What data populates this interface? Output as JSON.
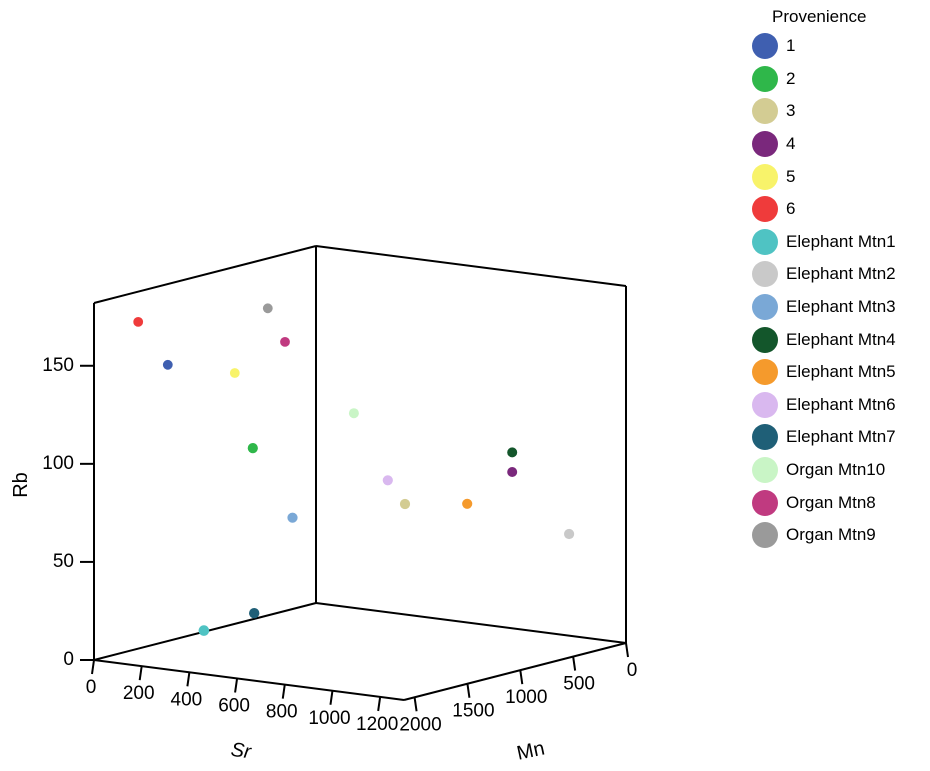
{
  "chart_data": {
    "type": "scatter3d",
    "axes": {
      "x": {
        "label": "Sr",
        "ticks": [
          "0",
          "200",
          "400",
          "600",
          "800",
          "1000",
          "1200"
        ]
      },
      "y": {
        "label": "Mn",
        "ticks": [
          "0",
          "500",
          "1000",
          "1500",
          "2000"
        ]
      },
      "z": {
        "label": "Rb",
        "ticks": [
          "0",
          "50",
          "100",
          "150"
        ]
      }
    },
    "legend": {
      "title": "Provenience",
      "items": [
        {
          "label": "1",
          "color": "#3f5fb0"
        },
        {
          "label": "2",
          "color": "#2fb74a"
        },
        {
          "label": "3",
          "color": "#d3cc93"
        },
        {
          "label": "4",
          "color": "#7a287c"
        },
        {
          "label": "5",
          "color": "#f8f36a"
        },
        {
          "label": "6",
          "color": "#ef3b3b"
        },
        {
          "label": "Elephant Mtn1",
          "color": "#4fc3c3"
        },
        {
          "label": "Elephant Mtn2",
          "color": "#c9c9c9"
        },
        {
          "label": "Elephant Mtn3",
          "color": "#7aa8d6"
        },
        {
          "label": "Elephant Mtn4",
          "color": "#13562b"
        },
        {
          "label": "Elephant Mtn5",
          "color": "#f59a2c"
        },
        {
          "label": "Elephant Mtn6",
          "color": "#d9b8ef"
        },
        {
          "label": "Elephant Mtn7",
          "color": "#1f5f77"
        },
        {
          "label": "Organ Mtn10",
          "color": "#c9f5c6"
        },
        {
          "label": "Organ Mtn8",
          "color": "#c03a80"
        },
        {
          "label": "Organ Mtn9",
          "color": "#9a9a9a"
        }
      ]
    },
    "points": [
      {
        "group": "6",
        "Sr": 30,
        "Mn": 1750,
        "Rb": 168
      },
      {
        "group": "1",
        "Sr": 110,
        "Mn": 1650,
        "Rb": 146
      },
      {
        "group": "Organ Mtn9",
        "Sr": 330,
        "Mn": 1200,
        "Rb": 172
      },
      {
        "group": "Organ Mtn8",
        "Sr": 380,
        "Mn": 1150,
        "Rb": 155
      },
      {
        "group": "5",
        "Sr": 280,
        "Mn": 1400,
        "Rb": 141
      },
      {
        "group": "Organ Mtn10",
        "Sr": 580,
        "Mn": 950,
        "Rb": 119
      },
      {
        "group": "2",
        "Sr": 400,
        "Mn": 1500,
        "Rb": 106
      },
      {
        "group": "Elephant Mtn4",
        "Sr": 1000,
        "Mn": 400,
        "Rb": 98
      },
      {
        "group": "4",
        "Sr": 1000,
        "Mn": 400,
        "Rb": 88
      },
      {
        "group": "Elephant Mtn6",
        "Sr": 700,
        "Mn": 900,
        "Rb": 86
      },
      {
        "group": "3",
        "Sr": 750,
        "Mn": 850,
        "Rb": 74
      },
      {
        "group": "Elephant Mtn5",
        "Sr": 900,
        "Mn": 600,
        "Rb": 73
      },
      {
        "group": "Elephant Mtn2",
        "Sr": 1150,
        "Mn": 200,
        "Rb": 56
      },
      {
        "group": "Elephant Mtn3",
        "Sr": 500,
        "Mn": 1350,
        "Rb": 70
      },
      {
        "group": "Elephant Mtn7",
        "Sr": 450,
        "Mn": 1600,
        "Rb": 24
      },
      {
        "group": "Elephant Mtn1",
        "Sr": 350,
        "Mn": 1850,
        "Rb": 17
      }
    ]
  }
}
